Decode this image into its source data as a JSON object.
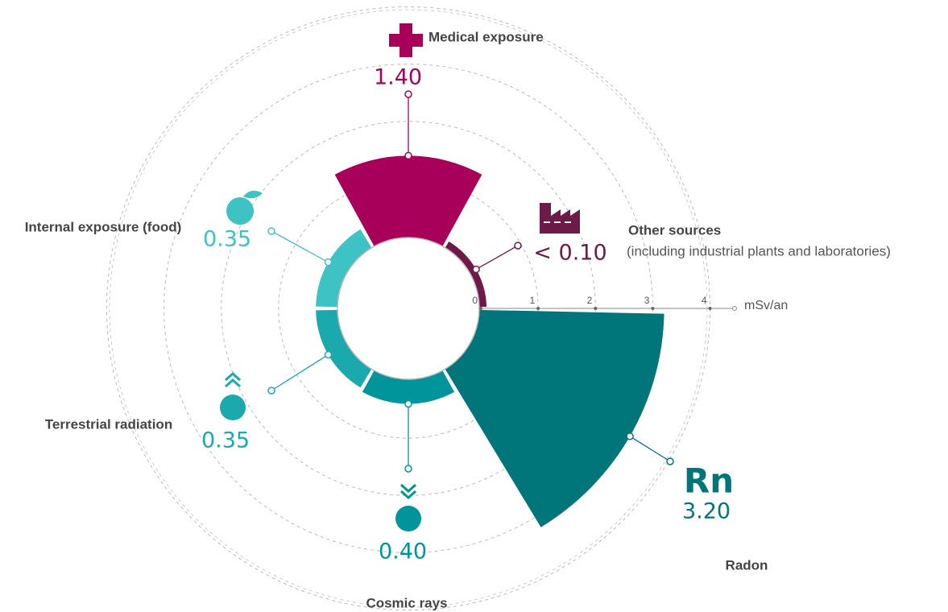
{
  "chart_data": {
    "type": "polar_area",
    "categories": [
      "Radon",
      "Cosmic rays",
      "Terrestrial radiation",
      "Internal exposure (food)",
      "Medical exposure",
      "Other sources"
    ],
    "values": [
      3.2,
      0.4,
      0.35,
      0.35,
      1.4,
      0.1
    ],
    "value_labels": [
      "3.20",
      "0.40",
      "0.35",
      "0.35",
      "1.40",
      "< 0.10"
    ],
    "colors": [
      "#00757a",
      "#00959a",
      "#1aa9ad",
      "#3fc2c4",
      "#a8005a",
      "#6e1a48"
    ],
    "annotations": [
      "Rn",
      "(including industrial plants and laboratories)"
    ],
    "axis_label": "mSv/an",
    "rlim": [
      0,
      4.4
    ],
    "rticks": [
      0,
      1,
      2,
      3,
      4
    ],
    "grid": true
  }
}
